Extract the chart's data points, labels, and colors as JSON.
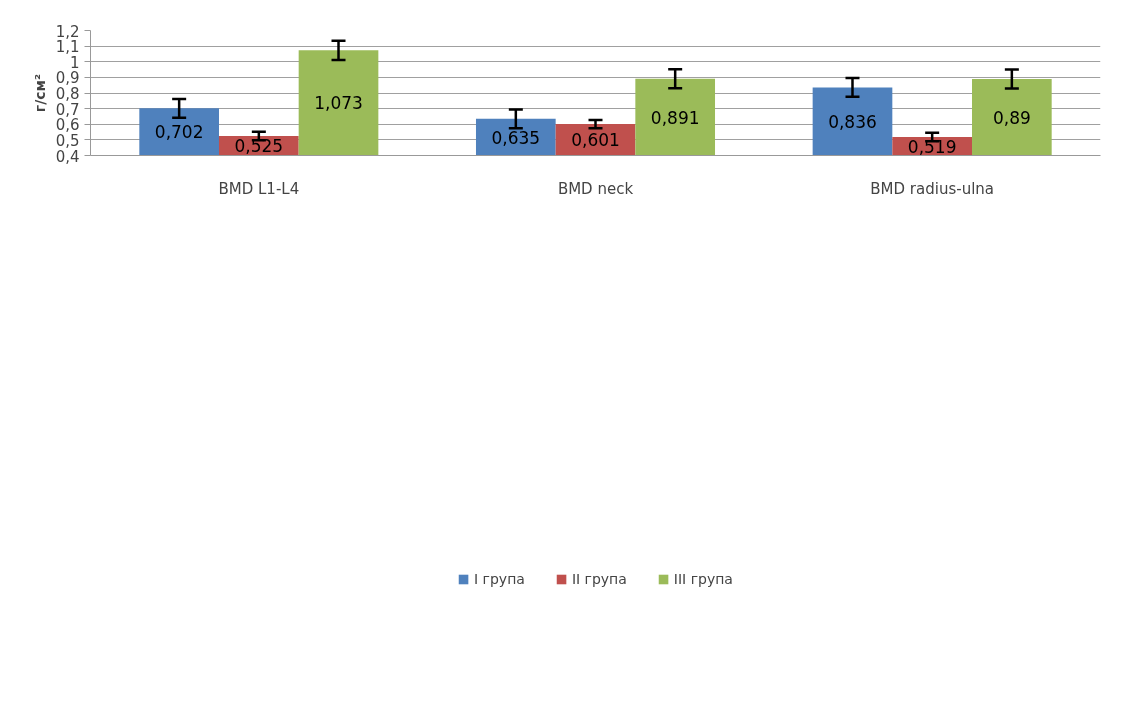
{
  "chart_data": {
    "type": "bar",
    "ylabel": "г/см²",
    "categories": [
      "BMD L1-L4",
      "BMD neck",
      "BMD radius-ulna"
    ],
    "series": [
      {
        "name": "I група",
        "color": "#4f81bd",
        "values": [
          0.702,
          0.635,
          0.836
        ],
        "errors": [
          0.06,
          0.06,
          0.06
        ],
        "value_labels": [
          "0,702",
          "0,635",
          "0,836"
        ]
      },
      {
        "name": "II група",
        "color": "#c0504d",
        "values": [
          0.525,
          0.601,
          0.519
        ],
        "errors": [
          0.027,
          0.026,
          0.027
        ],
        "value_labels": [
          "0,525",
          "0,601",
          "0,519"
        ]
      },
      {
        "name": "III група",
        "color": "#9bbb59",
        "values": [
          1.073,
          0.891,
          0.89
        ],
        "errors": [
          0.061,
          0.061,
          0.061
        ],
        "value_labels": [
          "1,073",
          "0,891",
          "0,89"
        ]
      }
    ],
    "ylim": [
      0.4,
      1.2
    ],
    "yticks": [
      {
        "value": 0.4,
        "label": "0,4"
      },
      {
        "value": 0.5,
        "label": "0,5"
      },
      {
        "value": 0.6,
        "label": "0,6"
      },
      {
        "value": 0.7,
        "label": "0,7"
      },
      {
        "value": 0.8,
        "label": "0,8"
      },
      {
        "value": 0.9,
        "label": "0,9"
      },
      {
        "value": 1,
        "label": "1"
      },
      {
        "value": 1.1,
        "label": "1,1"
      },
      {
        "value": 1.2,
        "label": "1,2"
      }
    ],
    "grid": "y",
    "legend": "bottom"
  }
}
